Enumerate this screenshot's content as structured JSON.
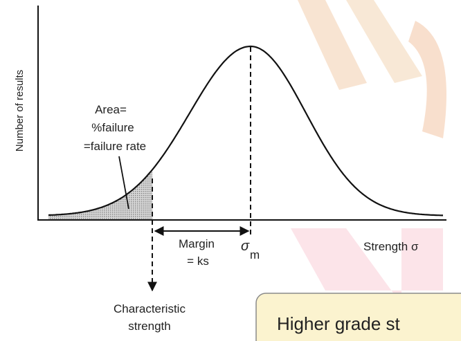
{
  "axis": {
    "y_label": "Number of results",
    "x_label": "Strength σ"
  },
  "annotations": {
    "area": [
      "Area=",
      "%failure",
      "=failure rate"
    ],
    "margin": [
      "Margin",
      "= ks"
    ],
    "mean": {
      "symbol": "σ",
      "subscript": "m"
    },
    "characteristic": [
      "Characteristic",
      "strength"
    ]
  },
  "callout": "Higher grade st"
}
